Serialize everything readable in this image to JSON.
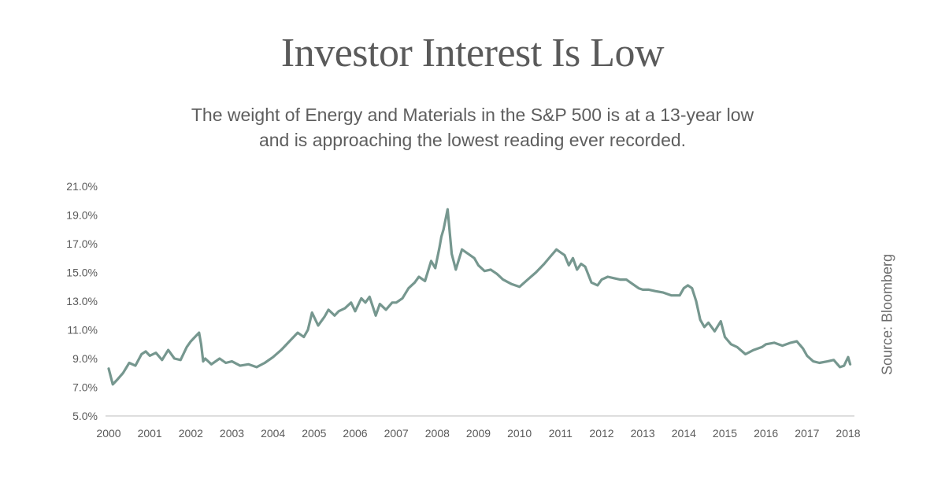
{
  "title": "Investor Interest Is Low",
  "subtitle_line1": "The weight of Energy and Materials in the S&P 500 is at a 13-year low",
  "subtitle_line2": "and is approaching the lowest reading ever recorded.",
  "source": "Source: Bloomberg",
  "colors": {
    "line": "#76978f",
    "axis": "#bdbdbd",
    "text": "#5a5a5a"
  },
  "chart_data": {
    "type": "line",
    "xlim": [
      2000,
      2018
    ],
    "ylim": [
      5.0,
      21.0
    ],
    "x_ticks": [
      "2000",
      "2001",
      "2002",
      "2003",
      "2004",
      "2005",
      "2006",
      "2007",
      "2008",
      "2009",
      "2010",
      "2011",
      "2012",
      "2013",
      "2014",
      "2015",
      "2016",
      "2017",
      "2018"
    ],
    "y_ticks": [
      "5.0%",
      "7.0%",
      "9.0%",
      "11.0%",
      "13.0%",
      "15.0%",
      "17.0%",
      "19.0%",
      "21.0%"
    ],
    "grid": false,
    "series": [
      {
        "values_unit": "percent",
        "x": [
          2000.0,
          2000.1,
          2000.2,
          2000.35,
          2000.5,
          2000.65,
          2000.8,
          2000.9,
          2001.0,
          2001.15,
          2001.3,
          2001.45,
          2001.6,
          2001.75,
          2001.9,
          2002.0,
          2002.1,
          2002.2,
          2002.25,
          2002.3,
          2002.35,
          2002.5,
          2002.7,
          2002.85,
          2003.0,
          2003.2,
          2003.4,
          2003.6,
          2003.8,
          2004.0,
          2004.2,
          2004.4,
          2004.6,
          2004.75,
          2004.85,
          2004.95,
          2005.1,
          2005.25,
          2005.35,
          2005.5,
          2005.6,
          2005.75,
          2005.9,
          2006.0,
          2006.15,
          2006.25,
          2006.35,
          2006.5,
          2006.6,
          2006.75,
          2006.9,
          2007.0,
          2007.15,
          2007.3,
          2007.45,
          2007.55,
          2007.7,
          2007.85,
          2007.95,
          2008.05,
          2008.1,
          2008.15,
          2008.25,
          2008.35,
          2008.45,
          2008.6,
          2008.75,
          2008.9,
          2009.0,
          2009.15,
          2009.3,
          2009.45,
          2009.6,
          2009.8,
          2010.0,
          2010.2,
          2010.4,
          2010.6,
          2010.75,
          2010.9,
          2011.0,
          2011.1,
          2011.2,
          2011.3,
          2011.4,
          2011.5,
          2011.6,
          2011.75,
          2011.9,
          2012.0,
          2012.15,
          2012.3,
          2012.45,
          2012.6,
          2012.75,
          2012.9,
          2013.0,
          2013.15,
          2013.3,
          2013.5,
          2013.7,
          2013.9,
          2014.0,
          2014.1,
          2014.2,
          2014.3,
          2014.4,
          2014.5,
          2014.6,
          2014.75,
          2014.9,
          2015.0,
          2015.15,
          2015.3,
          2015.5,
          2015.7,
          2015.9,
          2016.0,
          2016.2,
          2016.4,
          2016.6,
          2016.75,
          2016.9,
          2017.0,
          2017.15,
          2017.3,
          2017.5,
          2017.65,
          2017.8,
          2017.9,
          2018.0,
          2018.05
        ],
        "y": [
          8.3,
          7.2,
          7.5,
          8.0,
          8.7,
          8.5,
          9.3,
          9.5,
          9.2,
          9.4,
          8.9,
          9.6,
          9.0,
          8.9,
          9.8,
          10.2,
          10.5,
          10.8,
          10.0,
          8.8,
          9.0,
          8.6,
          9.0,
          8.7,
          8.8,
          8.5,
          8.6,
          8.4,
          8.7,
          9.1,
          9.6,
          10.2,
          10.8,
          10.5,
          11.0,
          12.2,
          11.3,
          11.9,
          12.4,
          12.0,
          12.3,
          12.5,
          12.9,
          12.3,
          13.2,
          12.9,
          13.3,
          12.0,
          12.8,
          12.4,
          12.9,
          12.9,
          13.2,
          13.9,
          14.3,
          14.7,
          14.4,
          15.8,
          15.3,
          16.7,
          17.5,
          18.0,
          19.4,
          16.3,
          15.2,
          16.6,
          16.3,
          16.0,
          15.5,
          15.1,
          15.2,
          14.9,
          14.5,
          14.2,
          14.0,
          14.5,
          15.0,
          15.6,
          16.1,
          16.6,
          16.4,
          16.2,
          15.5,
          16.0,
          15.2,
          15.6,
          15.4,
          14.3,
          14.1,
          14.5,
          14.7,
          14.6,
          14.5,
          14.5,
          14.2,
          13.9,
          13.8,
          13.8,
          13.7,
          13.6,
          13.4,
          13.4,
          13.9,
          14.1,
          13.9,
          13.0,
          11.7,
          11.2,
          11.5,
          10.9,
          11.6,
          10.5,
          10.0,
          9.8,
          9.3,
          9.6,
          9.8,
          10.0,
          10.1,
          9.9,
          10.1,
          10.2,
          9.7,
          9.2,
          8.8,
          8.7,
          8.8,
          8.9,
          8.4,
          8.5,
          9.1,
          8.6
        ]
      }
    ]
  }
}
